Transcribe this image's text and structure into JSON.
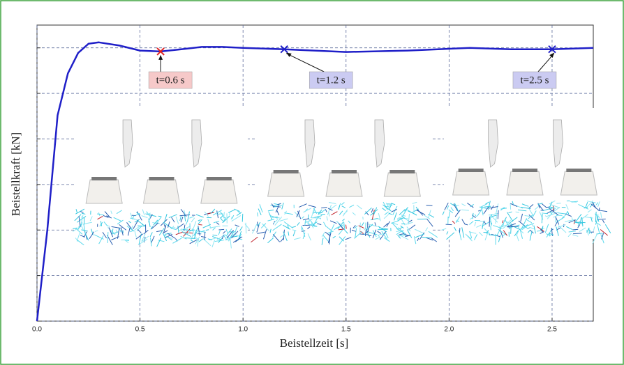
{
  "chart_data": {
    "type": "line",
    "xlabel": "Beistellzeit [s]",
    "ylabel": "Beistellkraft [kN]",
    "x": [
      0,
      0.05,
      0.1,
      0.15,
      0.2,
      0.25,
      0.3,
      0.4,
      0.5,
      0.6,
      0.7,
      0.8,
      0.9,
      1.0,
      1.2,
      1.5,
      1.8,
      2.1,
      2.3,
      2.5,
      2.7
    ],
    "series": [
      {
        "color": "#1f1fc8",
        "values": [
          0,
          2.0,
          4.52,
          5.44,
          5.89,
          6.09,
          6.12,
          6.05,
          5.94,
          5.92,
          5.97,
          6.02,
          6.02,
          6.0,
          5.97,
          5.91,
          5.94,
          6.0,
          5.97,
          5.97,
          6.0
        ]
      }
    ],
    "xlim": [
      0,
      2.7
    ],
    "ylim": [
      0,
      6.5
    ],
    "xticks": [
      {
        "value": 0,
        "label": "0.0"
      },
      0.5,
      {
        "value": 1,
        "label": "1.0"
      },
      1.5,
      {
        "value": 2,
        "label": "2.0"
      },
      2.5
    ],
    "yticks": [
      0,
      1,
      2,
      3,
      4,
      5,
      6
    ],
    "show_ytick_labels": false,
    "grid": true,
    "annotations": [
      {
        "text": "t=0.6 s",
        "x": 0.6,
        "y": 5.92,
        "color": "#e02020",
        "box_color": "#f6c9c9"
      },
      {
        "text": "t=1.2 s",
        "x": 1.2,
        "y": 5.97,
        "color": "#1f1fc8",
        "box_color": "#cbcbf2"
      },
      {
        "text": "t=2.5 s",
        "x": 2.5,
        "y": 5.97,
        "color": "#1f1fc8",
        "box_color": "#cbcbf2"
      }
    ]
  }
}
